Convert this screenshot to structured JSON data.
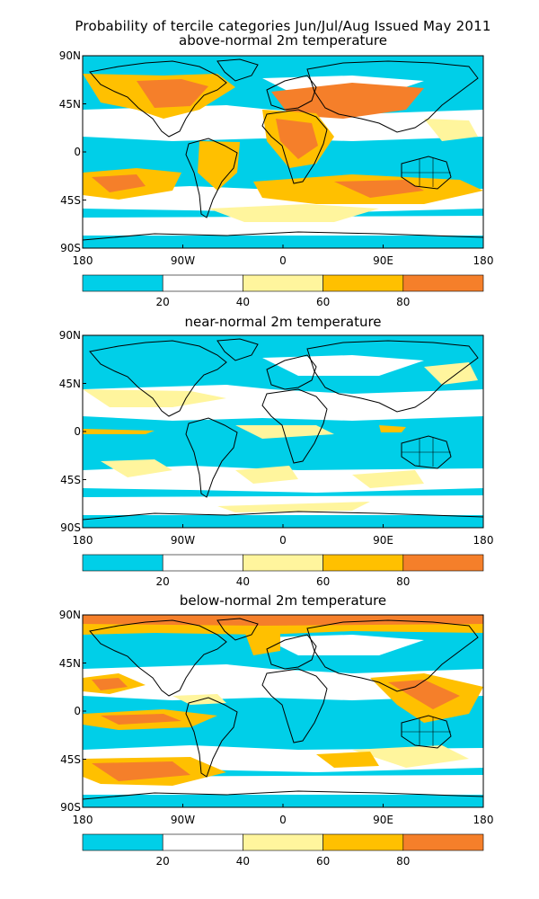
{
  "figure": {
    "title_line1": "Probability of tercile categories Jun/Jul/Aug Issued May 2011",
    "colors": {
      "cyan": "#00cfe8",
      "white": "#ffffff",
      "yellow": "#fff59d",
      "orange": "#ffc000",
      "dark_orange": "#f57f2a"
    },
    "colorbar_labels": [
      "20",
      "40",
      "60",
      "80"
    ],
    "lat_labels": [
      "90N",
      "45N",
      "0",
      "45S",
      "90S"
    ],
    "lon_labels": [
      "180",
      "90W",
      "0",
      "90E",
      "180"
    ]
  },
  "panels": [
    {
      "id": "above",
      "title": "above-normal 2m temperature"
    },
    {
      "id": "near",
      "title": "near-normal 2m temperature"
    },
    {
      "id": "below",
      "title": "below-normal 2m temperature"
    }
  ]
}
